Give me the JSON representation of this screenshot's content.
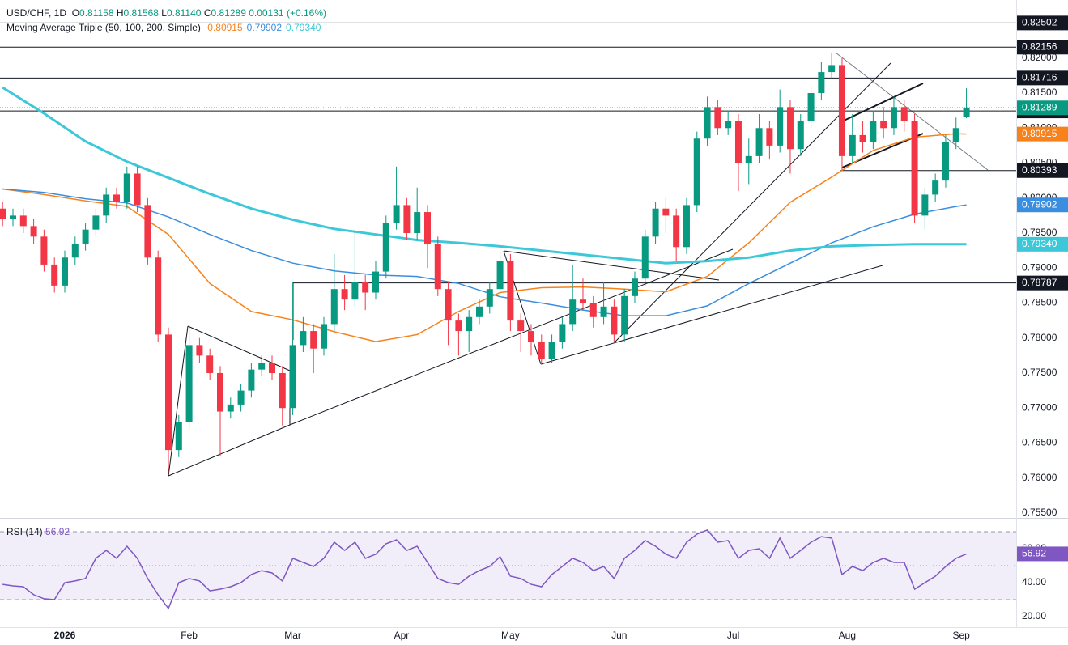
{
  "chart_data": [
    {
      "type": "candlestick",
      "title": "USD/CHF, 1D",
      "ohlc_prefixes": [
        "O",
        "H",
        "L",
        "C"
      ],
      "header_labels": [
        "0.81158",
        "0.81568",
        "0.81140",
        "0.81289"
      ],
      "change": 0.00131,
      "change_pct": "(+0.16%)",
      "up_color": "#089981",
      "down_color": "#f23645",
      "x": [
        -12,
        -10,
        -8,
        -6,
        -4,
        -2,
        0,
        2,
        4,
        6,
        8,
        10,
        12,
        14,
        16,
        18,
        20,
        22,
        24,
        26,
        28,
        30,
        32,
        34,
        36,
        38,
        40,
        42,
        44,
        46,
        48,
        50,
        52,
        54,
        56,
        58,
        60,
        62,
        64,
        66,
        68,
        70,
        72,
        74,
        76,
        78,
        80,
        82,
        84,
        86,
        88,
        90,
        92,
        94,
        96,
        98,
        100,
        102,
        104,
        106,
        108,
        110,
        112,
        114,
        116,
        118,
        120,
        122,
        124,
        126,
        128,
        130,
        132,
        134,
        136,
        138,
        140,
        142,
        144,
        146,
        148,
        150,
        152,
        154,
        156,
        158,
        160,
        162,
        164,
        166,
        168,
        170,
        172,
        174
      ],
      "open": [
        0.7985,
        0.797,
        0.7975,
        0.796,
        0.7945,
        0.7905,
        0.7875,
        0.7915,
        0.7935,
        0.7955,
        0.7975,
        0.8005,
        0.7995,
        0.8035,
        0.799,
        0.7915,
        0.7805,
        0.764,
        0.768,
        0.779,
        0.7775,
        0.775,
        0.7695,
        0.7705,
        0.7725,
        0.7755,
        0.7765,
        0.775,
        0.77,
        0.779,
        0.781,
        0.7785,
        0.782,
        0.787,
        0.7855,
        0.788,
        0.7865,
        0.7895,
        0.7965,
        0.799,
        0.795,
        0.798,
        0.7935,
        0.787,
        0.7825,
        0.781,
        0.783,
        0.7845,
        0.787,
        0.791,
        0.7825,
        0.781,
        0.7795,
        0.777,
        0.7795,
        0.782,
        0.7855,
        0.785,
        0.783,
        0.7845,
        0.7805,
        0.786,
        0.7885,
        0.7945,
        0.7985,
        0.7975,
        0.793,
        0.799,
        0.8085,
        0.813,
        0.81,
        0.811,
        0.805,
        0.806,
        0.81,
        0.8075,
        0.813,
        0.807,
        0.811,
        0.815,
        0.818,
        0.819,
        0.806,
        0.809,
        0.808,
        0.811,
        0.81,
        0.813,
        0.811,
        0.7975,
        0.8005,
        0.8025,
        0.808,
        0.81158
      ],
      "high": [
        0.7995,
        0.7985,
        0.7985,
        0.797,
        0.7955,
        0.7915,
        0.7925,
        0.7945,
        0.7965,
        0.7985,
        0.8015,
        0.8015,
        0.8045,
        0.8045,
        0.8,
        0.7925,
        0.7815,
        0.769,
        0.7818,
        0.78,
        0.7785,
        0.776,
        0.7715,
        0.7735,
        0.7765,
        0.7775,
        0.7775,
        0.776,
        0.788,
        0.783,
        0.782,
        0.783,
        0.792,
        0.789,
        0.7955,
        0.789,
        0.791,
        0.7975,
        0.8045,
        0.8,
        0.8015,
        0.799,
        0.7945,
        0.788,
        0.7835,
        0.784,
        0.7855,
        0.788,
        0.7925,
        0.792,
        0.7835,
        0.782,
        0.7805,
        0.7805,
        0.783,
        0.7905,
        0.7885,
        0.786,
        0.788,
        0.7855,
        0.787,
        0.7895,
        0.7955,
        0.7995,
        0.8,
        0.7985,
        0.8,
        0.8095,
        0.8145,
        0.814,
        0.8125,
        0.812,
        0.8085,
        0.812,
        0.811,
        0.8155,
        0.814,
        0.812,
        0.816,
        0.8195,
        0.8207,
        0.82,
        0.812,
        0.811,
        0.8125,
        0.813,
        0.8145,
        0.814,
        0.812,
        0.8015,
        0.8035,
        0.809,
        0.8115,
        0.81568
      ],
      "low": [
        0.796,
        0.796,
        0.795,
        0.7935,
        0.7895,
        0.7865,
        0.7865,
        0.7905,
        0.7925,
        0.7945,
        0.7965,
        0.7985,
        0.7985,
        0.798,
        0.7905,
        0.7795,
        0.7608,
        0.763,
        0.767,
        0.7765,
        0.774,
        0.7632,
        0.7685,
        0.7695,
        0.7715,
        0.7745,
        0.774,
        0.7675,
        0.769,
        0.778,
        0.775,
        0.7775,
        0.781,
        0.784,
        0.7845,
        0.784,
        0.7855,
        0.7885,
        0.7955,
        0.794,
        0.794,
        0.79,
        0.786,
        0.779,
        0.7775,
        0.778,
        0.782,
        0.7835,
        0.786,
        0.781,
        0.778,
        0.7775,
        0.7762,
        0.7765,
        0.7785,
        0.781,
        0.784,
        0.7815,
        0.782,
        0.7795,
        0.7795,
        0.785,
        0.7875,
        0.7935,
        0.795,
        0.791,
        0.792,
        0.798,
        0.8075,
        0.809,
        0.809,
        0.801,
        0.802,
        0.805,
        0.8055,
        0.8065,
        0.8035,
        0.806,
        0.81,
        0.814,
        0.817,
        0.804,
        0.805,
        0.8065,
        0.807,
        0.8085,
        0.809,
        0.8095,
        0.7965,
        0.7955,
        0.7995,
        0.8015,
        0.807,
        0.8114
      ],
      "close": [
        0.797,
        0.7975,
        0.796,
        0.7945,
        0.7905,
        0.7875,
        0.7915,
        0.7935,
        0.7955,
        0.7975,
        0.8005,
        0.7995,
        0.8035,
        0.799,
        0.7915,
        0.7805,
        0.764,
        0.768,
        0.779,
        0.7775,
        0.775,
        0.7695,
        0.7705,
        0.7725,
        0.7755,
        0.7765,
        0.775,
        0.77,
        0.779,
        0.781,
        0.7785,
        0.782,
        0.787,
        0.7855,
        0.788,
        0.7865,
        0.7895,
        0.7965,
        0.799,
        0.795,
        0.798,
        0.7935,
        0.787,
        0.7825,
        0.781,
        0.783,
        0.7845,
        0.787,
        0.791,
        0.7825,
        0.781,
        0.7795,
        0.777,
        0.7795,
        0.782,
        0.7855,
        0.785,
        0.783,
        0.7845,
        0.7805,
        0.786,
        0.7885,
        0.7945,
        0.7985,
        0.7975,
        0.793,
        0.799,
        0.8085,
        0.813,
        0.81,
        0.811,
        0.805,
        0.806,
        0.81,
        0.8075,
        0.813,
        0.807,
        0.811,
        0.815,
        0.818,
        0.819,
        0.806,
        0.809,
        0.808,
        0.811,
        0.81,
        0.813,
        0.811,
        0.7975,
        0.8005,
        0.8025,
        0.808,
        0.81,
        0.81289
      ],
      "indicator": {
        "name": "Moving Average Triple (50, 100, 200, Simple)",
        "x": [
          -12,
          -4,
          4,
          12,
          20,
          28,
          36,
          44,
          52,
          60,
          68,
          76,
          84,
          92,
          100,
          108,
          116,
          124,
          132,
          140,
          148,
          156,
          164,
          172,
          174
        ],
        "series": [
          {
            "color": "#f7821b",
            "last_label": "0.80915",
            "values": [
              0.8013,
              0.8005,
              0.7996,
              0.7988,
              0.7948,
              0.7878,
              0.7838,
              0.7826,
              0.7809,
              0.7795,
              0.7805,
              0.7838,
              0.7865,
              0.7872,
              0.7873,
              0.787,
              0.7866,
              0.7888,
              0.7936,
              0.7994,
              0.803,
              0.8068,
              0.8087,
              0.8092,
              0.80915
            ]
          },
          {
            "color": "#3a8ee0",
            "last_label": "0.79902",
            "values": [
              0.8013,
              0.8008,
              0.7999,
              0.7993,
              0.7973,
              0.7948,
              0.7925,
              0.7907,
              0.7896,
              0.789,
              0.7888,
              0.7878,
              0.7859,
              0.785,
              0.784,
              0.7832,
              0.7832,
              0.7846,
              0.7878,
              0.7907,
              0.7936,
              0.7959,
              0.7977,
              0.7988,
              0.79902
            ]
          },
          {
            "color": "#3cc8d8",
            "last_label": "0.79340",
            "values": [
              0.8158,
              0.8121,
              0.8081,
              0.8052,
              0.8029,
              0.8006,
              0.7985,
              0.7969,
              0.7956,
              0.7948,
              0.794,
              0.7936,
              0.7931,
              0.7925,
              0.7919,
              0.7913,
              0.7907,
              0.791,
              0.7915,
              0.7925,
              0.7931,
              0.7933,
              0.7934,
              0.7934,
              0.7934
            ]
          }
        ]
      },
      "levels": [
        0.82502,
        0.82156,
        0.81716,
        0.81245,
        0.80393,
        0.78787
      ],
      "ylim": [
        0.7543,
        0.8283
      ],
      "yticks": [
        {
          "value": 0.82,
          "label": "0.82000"
        },
        {
          "value": 0.815,
          "label": "0.81500"
        },
        {
          "value": 0.81,
          "label": "0.81000"
        },
        {
          "value": 0.805,
          "label": "0.80500"
        },
        {
          "value": 0.8,
          "label": "0.80000"
        },
        {
          "value": 0.795,
          "label": "0.79500"
        },
        {
          "value": 0.79,
          "label": "0.79000"
        },
        {
          "value": 0.785,
          "label": "0.78500"
        },
        {
          "value": 0.78,
          "label": "0.78000"
        },
        {
          "value": 0.775,
          "label": "0.77500"
        },
        {
          "value": 0.77,
          "label": "0.77000"
        },
        {
          "value": 0.765,
          "label": "0.76500"
        },
        {
          "value": 0.76,
          "label": "0.76000"
        },
        {
          "value": 0.755,
          "label": "0.75500"
        }
      ],
      "xlim": [
        -12.5,
        183.6
      ],
      "xticks": [
        {
          "value": 0,
          "label": "2026"
        },
        {
          "value": 24,
          "label": "Feb"
        },
        {
          "value": 44,
          "label": "Mar"
        },
        {
          "value": 65,
          "label": "Apr"
        },
        {
          "value": 86,
          "label": "May"
        },
        {
          "value": 107,
          "label": "Jun"
        },
        {
          "value": 129,
          "label": "Jul"
        },
        {
          "value": 151,
          "label": "Aug"
        },
        {
          "value": 173,
          "label": "Sep"
        }
      ]
    },
    {
      "type": "line",
      "title": "RSI (14)",
      "color": "#7e57c2",
      "values": [
        39.0,
        38.1,
        37.6,
        32.9,
        30.5,
        30.0,
        40.0,
        41.0,
        42.4,
        54.3,
        59.0,
        54.3,
        61.4,
        54.3,
        42.4,
        32.9,
        24.8,
        40.0,
        42.4,
        41.0,
        35.2,
        36.2,
        37.6,
        40.0,
        44.8,
        47.1,
        45.7,
        41.0,
        54.3,
        51.9,
        49.5,
        54.3,
        63.8,
        59.0,
        63.8,
        54.3,
        56.7,
        62.9,
        65.2,
        59.0,
        61.4,
        51.9,
        42.4,
        40.0,
        39.0,
        43.8,
        47.1,
        49.5,
        55.2,
        43.8,
        42.4,
        39.0,
        37.6,
        44.8,
        49.5,
        54.3,
        51.9,
        47.1,
        49.5,
        42.4,
        54.3,
        59.0,
        64.8,
        61.4,
        56.7,
        54.3,
        63.8,
        68.6,
        71.0,
        63.8,
        64.8,
        54.3,
        59.0,
        60.0,
        54.3,
        66.2,
        54.3,
        59.0,
        63.8,
        67.1,
        66.2,
        44.8,
        49.5,
        47.1,
        51.9,
        54.3,
        51.9,
        51.9,
        36.2,
        40.0,
        43.8,
        49.5,
        54.3,
        56.92
      ],
      "levels": [
        70,
        50,
        30
      ],
      "ylim": [
        13.8,
        77.6
      ],
      "yticks": [
        {
          "value": 60,
          "label": "60.00"
        },
        {
          "value": 40,
          "label": "40.00"
        },
        {
          "value": 20,
          "label": "20.00"
        }
      ]
    }
  ]
}
